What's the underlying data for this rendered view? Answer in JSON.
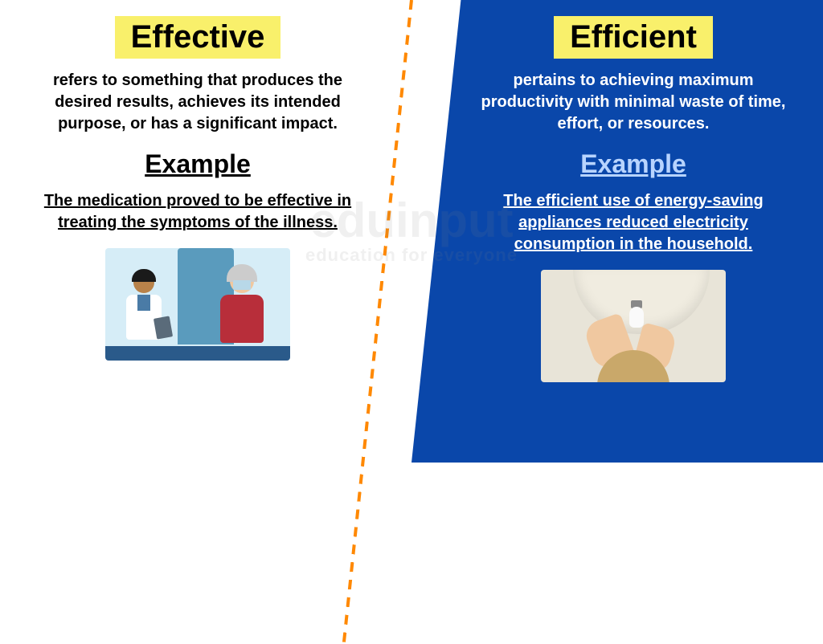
{
  "left": {
    "title": "Effective",
    "title_bg": "#f9f06b",
    "title_color": "#000000",
    "definition": "refers to something that produces the desired results, achieves its intended purpose, or has a significant impact.",
    "example_header": "Example",
    "example_text": "The medication proved to be effective in treating the symptoms of the illness.",
    "panel_bg": "#ffffff",
    "text_color": "#000000",
    "illustration_type": "medical-scene",
    "illustration_colors": {
      "background": "#d6edf7",
      "door": "#5a9bbd",
      "doctor_coat": "#ffffff",
      "doctor_skin": "#b8824a",
      "doctor_hair": "#1a1a1a",
      "patient_shirt": "#b82e3a",
      "patient_skin": "#f0c8a0",
      "patient_hair": "#cccccc",
      "mask": "#b8d8e8",
      "floor": "#2a5a8a"
    }
  },
  "right": {
    "title": "Efficient",
    "title_bg": "#f9f06b",
    "title_color": "#000000",
    "definition": "pertains to achieving maximum productivity with minimal waste of time, effort, or resources.",
    "example_header": "Example",
    "example_header_color": "#b8d4ff",
    "example_text": "The efficient use of energy-saving appliances reduced electricity consumption in the household.",
    "panel_bg": "#0a47aa",
    "text_color": "#ffffff",
    "illustration_type": "lightbulb-scene",
    "illustration_colors": {
      "background": "#e8e4d8",
      "lamp": "#f0ece0",
      "bulb": "#fafafa",
      "skin": "#f0c8a0",
      "hair": "#c9a86a"
    }
  },
  "divider": {
    "color": "#ff8800",
    "dash_length": 12,
    "gap_length": 10,
    "angle_deg": 6
  },
  "watermark": {
    "main": "eduinput",
    "sub": "education for everyone",
    "color": "rgba(128,128,128,0.12)"
  },
  "fonts": {
    "title_size": 40,
    "body_size": 20,
    "example_header_size": 32,
    "weight": 700
  }
}
